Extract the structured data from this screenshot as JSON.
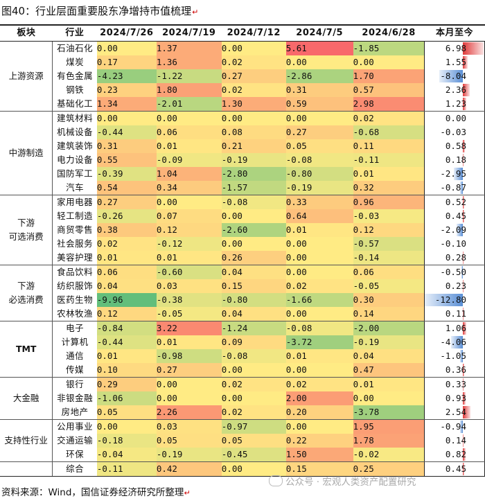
{
  "title": "图40：行业层面重要股东净增持市值梳理",
  "headers": [
    "板块",
    "行业",
    "2024/7/26",
    "2024/7/19",
    "2024/7/12",
    "2024/7/5",
    "2024/6/28",
    "本月至今"
  ],
  "groups": [
    {
      "name": "上游资源",
      "rows": [
        {
          "industry": "石油石化",
          "w": [
            "0.00",
            "1.37",
            "0.00",
            "5.61",
            "-1.85"
          ],
          "ytd": "6.98"
        },
        {
          "industry": "煤炭",
          "w": [
            "0.17",
            "1.36",
            "0.02",
            "0.00",
            "0.00"
          ],
          "ytd": "1.55"
        },
        {
          "industry": "有色金属",
          "w": [
            "-4.23",
            "-1.22",
            "0.27",
            "-2.86",
            "1.70"
          ],
          "ytd": "-8.04"
        },
        {
          "industry": "钢铁",
          "w": [
            "0.23",
            "1.80",
            "0.02",
            "0.31",
            "0.57"
          ],
          "ytd": "2.36"
        },
        {
          "industry": "基础化工",
          "w": [
            "1.34",
            "-2.01",
            "1.30",
            "0.59",
            "2.98"
          ],
          "ytd": "1.23"
        }
      ]
    },
    {
      "name": "中游制造",
      "rows": [
        {
          "industry": "建筑材料",
          "w": [
            "0.00",
            "0.00",
            "0.00",
            "0.00",
            "0.02"
          ],
          "ytd": "0.00"
        },
        {
          "industry": "机械设备",
          "w": [
            "-0.44",
            "0.06",
            "0.08",
            "0.27",
            "-0.68"
          ],
          "ytd": "-0.03"
        },
        {
          "industry": "建筑装饰",
          "w": [
            "0.31",
            "0.01",
            "0.21",
            "0.05",
            "0.11"
          ],
          "ytd": "0.58"
        },
        {
          "industry": "电力设备",
          "w": [
            "0.55",
            "-0.09",
            "-0.19",
            "-0.08",
            "-0.11"
          ],
          "ytd": "0.18"
        },
        {
          "industry": "国防军工",
          "w": [
            "-0.39",
            "1.04",
            "-2.80",
            "-0.80",
            "0.01"
          ],
          "ytd": "-2.95"
        },
        {
          "industry": "汽车",
          "w": [
            "0.54",
            "0.34",
            "-1.57",
            "-0.19",
            "0.32"
          ],
          "ytd": "-0.87"
        }
      ]
    },
    {
      "name": "下游\n可选消费",
      "rows": [
        {
          "industry": "家用电器",
          "w": [
            "0.27",
            "0.00",
            "-0.08",
            "0.33",
            "0.96"
          ],
          "ytd": "0.52"
        },
        {
          "industry": "轻工制造",
          "w": [
            "-0.26",
            "0.07",
            "0.00",
            "0.64",
            "-0.03"
          ],
          "ytd": "0.45"
        },
        {
          "industry": "商贸零售",
          "w": [
            "0.38",
            "0.12",
            "-2.60",
            "0.01",
            "0.12"
          ],
          "ytd": "-2.09"
        },
        {
          "industry": "社会服务",
          "w": [
            "0.02",
            "-0.12",
            "0.00",
            "0.00",
            "-0.57"
          ],
          "ytd": "-0.10"
        },
        {
          "industry": "美容护理",
          "w": [
            "0.01",
            "0.01",
            "0.26",
            "0.00",
            "-0.14"
          ],
          "ytd": "0.28"
        }
      ]
    },
    {
      "name": "下游\n必选消费",
      "rows": [
        {
          "industry": "食品饮料",
          "w": [
            "0.06",
            "-0.60",
            "0.04",
            "0.00",
            "0.06"
          ],
          "ytd": "-0.50"
        },
        {
          "industry": "纺织服饰",
          "w": [
            "0.04",
            "0.03",
            "0.15",
            "0.02",
            "-0.05"
          ],
          "ytd": "0.23"
        },
        {
          "industry": "医药生物",
          "w": [
            "-9.96",
            "-0.38",
            "-0.80",
            "-1.66",
            "0.30"
          ],
          "ytd": "-12.80"
        },
        {
          "industry": "农林牧渔",
          "w": [
            "0.12",
            "-0.05",
            "0.04",
            "0.00",
            "0.14"
          ],
          "ytd": "0.11"
        }
      ]
    },
    {
      "name": "TMT",
      "rows": [
        {
          "industry": "电子",
          "w": [
            "-0.84",
            "3.22",
            "-1.24",
            "-0.08",
            "-2.00"
          ],
          "ytd": "1.06"
        },
        {
          "industry": "计算机",
          "w": [
            "-0.44",
            "0.01",
            "0.09",
            "-3.72",
            "-0.19"
          ],
          "ytd": "-4.06"
        },
        {
          "industry": "通信",
          "w": [
            "0.01",
            "-0.98",
            "-0.08",
            "0.01",
            "0.04"
          ],
          "ytd": "-1.05"
        },
        {
          "industry": "传媒",
          "w": [
            "0.10",
            "0.27",
            "0.00",
            "0.00",
            "0.47"
          ],
          "ytd": "0.36"
        }
      ]
    },
    {
      "name": "大金融",
      "rows": [
        {
          "industry": "银行",
          "w": [
            "0.29",
            "0.00",
            "0.02",
            "0.02",
            "0.01"
          ],
          "ytd": "0.33"
        },
        {
          "industry": "非银金融",
          "w": [
            "-1.06",
            "0.00",
            "0.00",
            "2.00",
            "0.00"
          ],
          "ytd": "0.93"
        },
        {
          "industry": "房地产",
          "w": [
            "0.05",
            "2.26",
            "0.02",
            "0.20",
            "-3.78"
          ],
          "ytd": "2.54"
        }
      ]
    },
    {
      "name": "支持性行业",
      "rows": [
        {
          "industry": "公用事业",
          "w": [
            "0.00",
            "0.03",
            "-0.97",
            "0.00",
            "1.95"
          ],
          "ytd": "-0.94"
        },
        {
          "industry": "交通运输",
          "w": [
            "-0.18",
            "0.05",
            "0.05",
            "0.22",
            "1.78"
          ],
          "ytd": "0.14"
        },
        {
          "industry": "环保",
          "w": [
            "-0.04",
            "-0.19",
            "-0.45",
            "1.50",
            "-0.02"
          ],
          "ytd": "0.82"
        }
      ]
    },
    {
      "name": "",
      "rows": [
        {
          "industry": "综合",
          "w": [
            "-0.11",
            "0.42",
            "0.00",
            "0.15",
            "0.25"
          ],
          "ytd": "0.45"
        }
      ]
    }
  ],
  "source": "资料来源：Wind，国信证券经济研究所整理",
  "watermark": "公众号 · 宏观人类资产配置研究",
  "colors": {
    "heat_positive_max": "#f8696b",
    "heat_neutral": "#ffeb84",
    "heat_negative_max": "#63be7b",
    "bar_positive": "#e03a3a",
    "bar_negative": "#5a8fd6"
  }
}
